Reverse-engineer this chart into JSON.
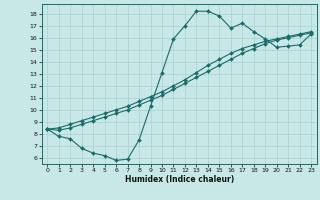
{
  "xlabel": "Humidex (Indice chaleur)",
  "bg_color": "#c8e8e8",
  "line_color": "#1a6b6b",
  "grid_color": "#a8d0d0",
  "xlim": [
    -0.5,
    23.5
  ],
  "ylim": [
    5.5,
    18.8
  ],
  "xticks": [
    0,
    1,
    2,
    3,
    4,
    5,
    6,
    7,
    8,
    9,
    10,
    11,
    12,
    13,
    14,
    15,
    16,
    17,
    18,
    19,
    20,
    21,
    22,
    23
  ],
  "yticks": [
    6,
    7,
    8,
    9,
    10,
    11,
    12,
    13,
    14,
    15,
    16,
    17,
    18
  ],
  "line1_x": [
    0,
    1,
    2,
    3,
    4,
    5,
    6,
    7,
    8,
    9,
    10,
    11,
    12,
    13,
    14,
    15,
    16,
    17,
    18,
    19,
    20,
    21,
    22,
    23
  ],
  "line1_y": [
    8.4,
    7.8,
    7.6,
    6.8,
    6.4,
    6.2,
    5.8,
    5.9,
    7.5,
    10.3,
    13.1,
    15.9,
    17.0,
    18.2,
    18.2,
    17.8,
    16.8,
    17.2,
    16.5,
    15.9,
    15.2,
    15.3,
    15.4,
    16.3
  ],
  "line2_x": [
    0,
    1,
    2,
    3,
    4,
    5,
    6,
    7,
    8,
    9,
    10,
    11,
    12,
    13,
    14,
    15,
    16,
    17,
    18,
    19,
    20,
    21,
    22,
    23
  ],
  "line2_y": [
    8.4,
    8.3,
    8.5,
    8.8,
    9.1,
    9.4,
    9.7,
    10.0,
    10.4,
    10.8,
    11.2,
    11.7,
    12.2,
    12.7,
    13.2,
    13.7,
    14.2,
    14.7,
    15.1,
    15.5,
    15.8,
    16.0,
    16.2,
    16.4
  ],
  "line3_x": [
    0,
    1,
    2,
    3,
    4,
    5,
    6,
    7,
    8,
    9,
    10,
    11,
    12,
    13,
    14,
    15,
    16,
    17,
    18,
    19,
    20,
    21,
    22,
    23
  ],
  "line3_y": [
    8.4,
    8.5,
    8.8,
    9.1,
    9.4,
    9.7,
    10.0,
    10.3,
    10.7,
    11.1,
    11.5,
    12.0,
    12.5,
    13.1,
    13.7,
    14.2,
    14.7,
    15.1,
    15.4,
    15.7,
    15.9,
    16.1,
    16.3,
    16.5
  ]
}
